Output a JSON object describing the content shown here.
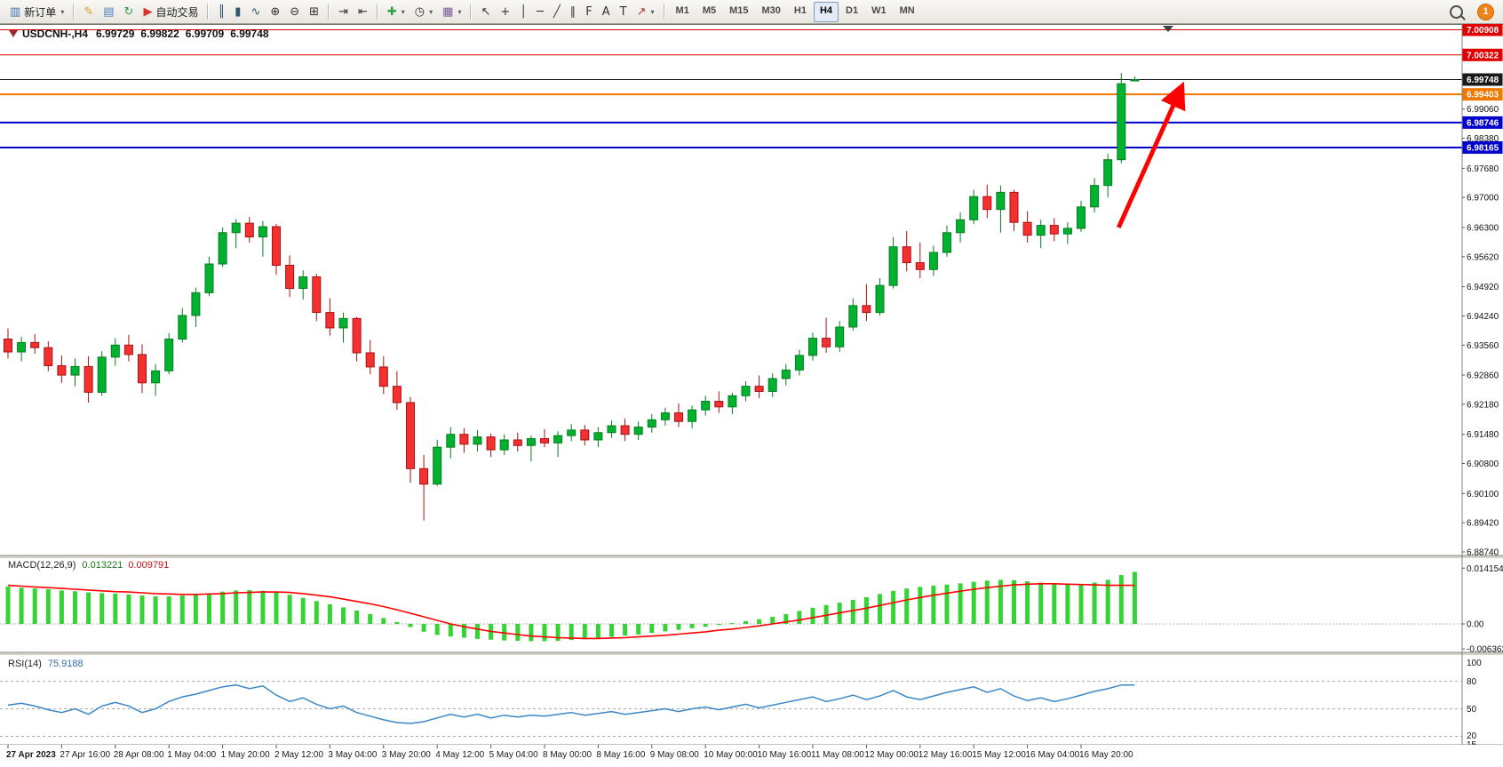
{
  "app": {
    "notification_count": "1"
  },
  "chart_header": {
    "symbol_period": "USDCNH-,H4",
    "open": "6.99729",
    "high": "6.99822",
    "low": "6.99709",
    "close": "6.99748"
  },
  "toolbar": {
    "items": [
      {
        "name": "new-order-button",
        "glyph": "▥",
        "glyph_color": "#3f72af",
        "label": "新订单",
        "dropdown": true
      },
      {
        "name": "sep"
      },
      {
        "name": "metaeditor-button",
        "glyph": "✎",
        "glyph_color": "#d99f1e"
      },
      {
        "name": "print-button",
        "glyph": "▤",
        "glyph_color": "#4a7ebb"
      },
      {
        "name": "refresh-button",
        "glyph": "↻",
        "glyph_color": "#2f9e44"
      },
      {
        "name": "autotrading-button",
        "glyph": "▶",
        "glyph_color": "#d9342b",
        "label": "自动交易"
      },
      {
        "name": "sep"
      },
      {
        "name": "chart-bars-button",
        "glyph": "║",
        "glyph_color": "#33566e"
      },
      {
        "name": "chart-candles-button",
        "glyph": "▮",
        "glyph_color": "#33566e"
      },
      {
        "name": "chart-line-button",
        "glyph": "∿",
        "glyph_color": "#33566e"
      },
      {
        "name": "zoom-in-button",
        "glyph": "⊕",
        "glyph_color": "#333333"
      },
      {
        "name": "zoom-out-button",
        "glyph": "⊖",
        "glyph_color": "#333333"
      },
      {
        "name": "tile-windows-button",
        "glyph": "⊞",
        "glyph_color": "#333333"
      },
      {
        "name": "sep"
      },
      {
        "name": "auto-scroll-button",
        "glyph": "⇥",
        "glyph_color": "#333333"
      },
      {
        "name": "chart-shift-button",
        "glyph": "⇤",
        "glyph_color": "#333333"
      },
      {
        "name": "sep"
      },
      {
        "name": "indicators-button",
        "glyph": "✚",
        "glyph_color": "#2f9e44",
        "dropdown": true
      },
      {
        "name": "periods-button",
        "glyph": "◷",
        "glyph_color": "#333333",
        "dropdown": true
      },
      {
        "name": "templates-button",
        "glyph": "▦",
        "glyph_color": "#7a5c99",
        "dropdown": true
      },
      {
        "name": "sep"
      },
      {
        "name": "cursor-button",
        "glyph": "↖",
        "glyph_color": "#333333"
      },
      {
        "name": "crosshair-button",
        "glyph": "+",
        "glyph_color": "#333333"
      },
      {
        "name": "vertical-line-button",
        "glyph": "│",
        "glyph_color": "#333333"
      },
      {
        "name": "horizontal-line-button",
        "glyph": "─",
        "glyph_color": "#333333"
      },
      {
        "name": "trendline-button",
        "glyph": "╱",
        "glyph_color": "#333333"
      },
      {
        "name": "channel-button",
        "glyph": "∥",
        "glyph_color": "#333333"
      },
      {
        "name": "fibonacci-button",
        "glyph": "F",
        "glyph_color": "#333333"
      },
      {
        "name": "text-button",
        "glyph": "A",
        "glyph_color": "#333333"
      },
      {
        "name": "text-label-button",
        "glyph": "T",
        "glyph_color": "#333333"
      },
      {
        "name": "arrows-button",
        "glyph": "↗",
        "glyph_color": "#b3332b",
        "dropdown": true
      },
      {
        "name": "sep"
      }
    ],
    "timeframes": [
      "M1",
      "M5",
      "M15",
      "M30",
      "H1",
      "H4",
      "D1",
      "W1",
      "MN"
    ],
    "active_timeframe": "H4"
  },
  "price_axis": {
    "ticks": [
      "6.99060",
      "6.98380",
      "6.97680",
      "6.97000",
      "6.96300",
      "6.95620",
      "6.94920",
      "6.94240",
      "6.93560",
      "6.92860",
      "6.92180",
      "6.91480",
      "6.90800",
      "6.90100",
      "6.89420",
      "6.88740"
    ],
    "badges": [
      {
        "value": "7.00908",
        "bg": "#e00000"
      },
      {
        "value": "7.00322",
        "bg": "#e00000"
      },
      {
        "value": "6.99748",
        "bg": "#1a1a1a"
      },
      {
        "value": "6.99403",
        "bg": "#f07800"
      },
      {
        "value": "6.98746",
        "bg": "#0000cc"
      },
      {
        "value": "6.98165",
        "bg": "#0000cc"
      }
    ]
  },
  "chart_data": {
    "type": "candlestick",
    "symbol": "USDCNH",
    "timeframe": "H4",
    "title": "USDCNH-,H4 6.99729 6.99822 6.99709 6.99748",
    "ylim": [
      6.8874,
      7.00908
    ],
    "up_color": "#00b22d",
    "down_color": "#f43030",
    "horizontal_lines": [
      {
        "price": 7.00908,
        "color": "#e00000",
        "width": 1
      },
      {
        "price": 7.00322,
        "color": "#e00000",
        "width": 1
      },
      {
        "price": 6.99748,
        "color": "#1a1a1a",
        "width": 1
      },
      {
        "price": 6.99403,
        "color": "#f07800",
        "width": 2
      },
      {
        "price": 6.98746,
        "color": "#0000cc",
        "width": 2
      },
      {
        "price": 6.98165,
        "color": "#0000cc",
        "width": 2
      }
    ],
    "label_every_n_candles": 4,
    "time_labels": [
      "27 Apr 2023",
      "27 Apr 16:00",
      "28 Apr 08:00",
      "1 May 04:00",
      "1 May 20:00",
      "2 May 12:00",
      "3 May 04:00",
      "3 May 20:00",
      "4 May 12:00",
      "5 May 04:00",
      "8 May 00:00",
      "8 May 16:00",
      "9 May 08:00",
      "10 May 00:00",
      "10 May 16:00",
      "11 May 08:00",
      "12 May 00:00",
      "12 May 16:00",
      "15 May 12:00",
      "16 May 04:00",
      "16 May 20:00"
    ],
    "ohlc": [
      [
        6.937,
        6.9395,
        6.9325,
        6.934
      ],
      [
        6.934,
        6.9375,
        6.9318,
        6.9362
      ],
      [
        6.9362,
        6.9382,
        6.9336,
        6.935
      ],
      [
        6.935,
        6.9365,
        6.9295,
        6.9308
      ],
      [
        6.9308,
        6.9332,
        6.9268,
        6.9286
      ],
      [
        6.9286,
        6.9325,
        6.926,
        6.9306
      ],
      [
        6.9306,
        6.933,
        6.9222,
        6.9246
      ],
      [
        6.9246,
        6.9342,
        6.9238,
        6.9328
      ],
      [
        6.9328,
        6.9372,
        6.9308,
        6.9356
      ],
      [
        6.9356,
        6.938,
        6.9318,
        6.9334
      ],
      [
        6.9334,
        6.9358,
        6.9244,
        6.9268
      ],
      [
        6.9268,
        6.9312,
        6.9238,
        6.9296
      ],
      [
        6.9296,
        6.9384,
        6.9288,
        6.937
      ],
      [
        6.937,
        6.9442,
        6.9362,
        6.9425
      ],
      [
        6.9425,
        6.949,
        6.9398,
        6.9478
      ],
      [
        6.9478,
        6.9562,
        6.947,
        6.9545
      ],
      [
        6.9545,
        6.963,
        6.9538,
        6.9618
      ],
      [
        6.9618,
        6.965,
        6.9582,
        6.964
      ],
      [
        6.964,
        6.9655,
        6.9595,
        6.9608
      ],
      [
        6.9608,
        6.9645,
        6.9562,
        6.9632
      ],
      [
        6.9632,
        6.9638,
        6.952,
        6.9542
      ],
      [
        6.9542,
        6.9565,
        6.9468,
        6.9488
      ],
      [
        6.9488,
        6.953,
        6.9462,
        6.9515
      ],
      [
        6.9515,
        6.9522,
        6.9412,
        6.9432
      ],
      [
        6.9432,
        6.9465,
        6.9378,
        6.9396
      ],
      [
        6.9396,
        6.9432,
        6.9362,
        6.9418
      ],
      [
        6.9418,
        6.9422,
        6.9318,
        6.9338
      ],
      [
        6.9338,
        6.9368,
        6.9288,
        6.9305
      ],
      [
        6.9305,
        6.933,
        6.9242,
        6.926
      ],
      [
        6.926,
        6.9295,
        6.9205,
        6.9222
      ],
      [
        6.9222,
        6.9235,
        6.9035,
        6.9068
      ],
      [
        6.9068,
        6.91,
        6.8947,
        6.9032
      ],
      [
        6.9032,
        6.9135,
        6.9028,
        6.9118
      ],
      [
        6.9118,
        6.9165,
        6.9092,
        6.9148
      ],
      [
        6.9148,
        6.9162,
        6.9105,
        6.9125
      ],
      [
        6.9125,
        6.9158,
        6.9108,
        6.9142
      ],
      [
        6.9142,
        6.915,
        6.9095,
        6.9112
      ],
      [
        6.9112,
        6.9148,
        6.91,
        6.9135
      ],
      [
        6.9135,
        6.9152,
        6.9108,
        6.9122
      ],
      [
        6.9122,
        6.9145,
        6.9085,
        6.9138
      ],
      [
        6.9138,
        6.916,
        6.9118,
        6.9128
      ],
      [
        6.9128,
        6.9155,
        6.9095,
        6.9145
      ],
      [
        6.9145,
        6.9172,
        6.9132,
        6.9158
      ],
      [
        6.9158,
        6.917,
        6.9122,
        6.9135
      ],
      [
        6.9135,
        6.9165,
        6.9118,
        6.9152
      ],
      [
        6.9152,
        6.918,
        6.914,
        6.9168
      ],
      [
        6.9168,
        6.9185,
        6.9132,
        6.9148
      ],
      [
        6.9148,
        6.9178,
        6.9135,
        6.9165
      ],
      [
        6.9165,
        6.9195,
        6.9152,
        6.9182
      ],
      [
        6.9182,
        6.921,
        6.9168,
        6.9198
      ],
      [
        6.9198,
        6.922,
        6.9165,
        6.9178
      ],
      [
        6.9178,
        6.9215,
        6.9162,
        6.9205
      ],
      [
        6.9205,
        6.9238,
        6.9192,
        6.9225
      ],
      [
        6.9225,
        6.9248,
        6.9198,
        6.9212
      ],
      [
        6.9212,
        6.9245,
        6.9195,
        6.9238
      ],
      [
        6.9238,
        6.9272,
        6.9225,
        6.926
      ],
      [
        6.926,
        6.9285,
        6.9232,
        6.9248
      ],
      [
        6.9248,
        6.929,
        6.9235,
        6.9278
      ],
      [
        6.9278,
        6.9312,
        6.9262,
        6.9298
      ],
      [
        6.9298,
        6.9345,
        6.9285,
        6.9332
      ],
      [
        6.9332,
        6.9385,
        6.932,
        6.9372
      ],
      [
        6.9372,
        6.942,
        6.9338,
        6.9352
      ],
      [
        6.9352,
        6.9412,
        6.934,
        6.9398
      ],
      [
        6.9398,
        6.9465,
        6.939,
        6.9448
      ],
      [
        6.9448,
        6.9498,
        6.9412,
        6.9432
      ],
      [
        6.9432,
        6.9512,
        6.9425,
        6.9495
      ],
      [
        6.9495,
        6.9608,
        6.9488,
        6.9585
      ],
      [
        6.9585,
        6.9622,
        6.9528,
        6.9548
      ],
      [
        6.9548,
        6.9595,
        6.9512,
        6.9532
      ],
      [
        6.9532,
        6.9588,
        6.9518,
        6.9572
      ],
      [
        6.9572,
        6.9635,
        6.9562,
        6.9618
      ],
      [
        6.9618,
        6.9665,
        6.9595,
        6.9648
      ],
      [
        6.9648,
        6.9718,
        6.9638,
        6.9702
      ],
      [
        6.9702,
        6.973,
        6.9652,
        6.9672
      ],
      [
        6.9672,
        6.9728,
        6.9618,
        6.9712
      ],
      [
        6.9712,
        6.9718,
        6.9622,
        6.9642
      ],
      [
        6.9642,
        6.9668,
        6.9595,
        6.9612
      ],
      [
        6.9612,
        6.9648,
        6.9582,
        6.9635
      ],
      [
        6.9635,
        6.9652,
        6.9598,
        6.9615
      ],
      [
        6.9615,
        6.9642,
        6.9592,
        6.9628
      ],
      [
        6.9628,
        6.9692,
        6.962,
        6.9678
      ],
      [
        6.9678,
        6.9745,
        6.9665,
        6.9728
      ],
      [
        6.9728,
        6.9802,
        6.97,
        6.9788
      ],
      [
        6.9788,
        6.999,
        6.978,
        6.9965
      ],
      [
        6.99729,
        6.99822,
        6.99709,
        6.99748
      ]
    ],
    "indicators": [
      {
        "type": "MACD",
        "label": "MACD(12,26,9)",
        "main_value": "0.013221",
        "signal_value": "0.009791",
        "axis_labels": [
          "0.014154",
          "0.00",
          "-0.006362"
        ],
        "axis_values": [
          0.014154,
          0,
          -0.006362
        ],
        "histogram_color": "#35d435",
        "signal_color": "#ff0000",
        "histogram": [
          0.0095,
          0.0092,
          0.009,
          0.0088,
          0.0085,
          0.0083,
          0.008,
          0.0078,
          0.0077,
          0.0075,
          0.0072,
          0.007,
          0.007,
          0.0072,
          0.0075,
          0.0078,
          0.0082,
          0.0085,
          0.0086,
          0.0084,
          0.008,
          0.0074,
          0.0066,
          0.0058,
          0.005,
          0.0042,
          0.0034,
          0.0025,
          0.0015,
          0.0005,
          -0.0008,
          -0.002,
          -0.0028,
          -0.0032,
          -0.0035,
          -0.0038,
          -0.004,
          -0.0042,
          -0.0043,
          -0.0044,
          -0.0044,
          -0.0043,
          -0.0041,
          -0.0039,
          -0.0036,
          -0.0033,
          -0.003,
          -0.0027,
          -0.0023,
          -0.0019,
          -0.0015,
          -0.0011,
          -0.0007,
          -0.0003,
          0.0002,
          0.0007,
          0.0012,
          0.0018,
          0.0025,
          0.0033,
          0.0041,
          0.0048,
          0.0054,
          0.0061,
          0.0068,
          0.0076,
          0.0084,
          0.009,
          0.0094,
          0.0097,
          0.01,
          0.0103,
          0.0107,
          0.011,
          0.0112,
          0.0111,
          0.0108,
          0.0105,
          0.0102,
          0.01,
          0.0101,
          0.0105,
          0.0112,
          0.0124,
          0.013221
        ],
        "signal": [
          0.0098,
          0.0096,
          0.0094,
          0.0092,
          0.009,
          0.0088,
          0.0086,
          0.0084,
          0.0082,
          0.0081,
          0.0079,
          0.0077,
          0.0076,
          0.0075,
          0.0075,
          0.0076,
          0.0077,
          0.0079,
          0.008,
          0.0081,
          0.0081,
          0.008,
          0.0077,
          0.0073,
          0.0069,
          0.0063,
          0.0057,
          0.0051,
          0.0044,
          0.0036,
          0.0027,
          0.0018,
          0.0009,
          0.0,
          -0.0007,
          -0.0013,
          -0.0019,
          -0.0023,
          -0.0027,
          -0.0031,
          -0.0033,
          -0.0035,
          -0.0036,
          -0.0037,
          -0.0037,
          -0.0036,
          -0.0035,
          -0.0033,
          -0.0031,
          -0.0029,
          -0.0026,
          -0.0023,
          -0.002,
          -0.0016,
          -0.0013,
          -0.0009,
          -0.0005,
          0.0,
          0.0005,
          0.001,
          0.0016,
          0.0022,
          0.0028,
          0.0034,
          0.004,
          0.0047,
          0.0054,
          0.0061,
          0.0067,
          0.0073,
          0.0078,
          0.0083,
          0.0088,
          0.0092,
          0.0096,
          0.0099,
          0.0101,
          0.0102,
          0.0102,
          0.0101,
          0.01,
          0.0099,
          0.0098,
          0.0098,
          0.009791
        ]
      },
      {
        "type": "RSI",
        "label": "RSI(14)",
        "value": "75.9188",
        "line_color": "#3a87c8",
        "levels": [
          80,
          50,
          20
        ],
        "axis_labels": [
          "100",
          "80",
          "50",
          "20",
          "15"
        ],
        "range": [
          15,
          100
        ],
        "values": [
          54,
          56,
          53,
          49,
          46,
          50,
          44,
          53,
          57,
          53,
          46,
          50,
          58,
          63,
          66,
          70,
          74,
          76,
          72,
          75,
          65,
          58,
          62,
          55,
          50,
          53,
          46,
          42,
          38,
          35,
          34,
          36,
          40,
          44,
          41,
          44,
          40,
          43,
          41,
          43,
          42,
          44,
          46,
          43,
          45,
          47,
          44,
          46,
          48,
          50,
          47,
          50,
          52,
          49,
          52,
          55,
          51,
          54,
          57,
          60,
          63,
          58,
          61,
          65,
          60,
          64,
          70,
          63,
          60,
          64,
          68,
          71,
          74,
          68,
          72,
          64,
          59,
          62,
          58,
          61,
          65,
          69,
          72,
          76,
          75.9
        ]
      }
    ],
    "annotations": [
      {
        "type": "arrow",
        "color": "#ff0000",
        "from": {
          "bar": 82.8,
          "price": 6.963
        },
        "to": {
          "bar": 87.2,
          "price": 6.9937
        }
      }
    ]
  }
}
